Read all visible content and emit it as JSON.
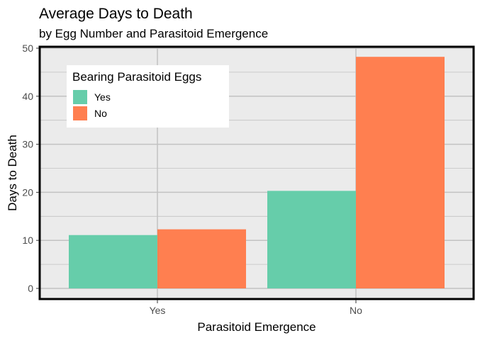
{
  "chart_data": {
    "type": "bar",
    "title": "Average Days to Death",
    "subtitle": "by Egg Number and Parasitoid Emergence",
    "xlabel": "Parasitoid Emergence",
    "ylabel": "Days to Death",
    "categories": [
      "Yes",
      "No"
    ],
    "series": [
      {
        "name": "Yes",
        "color": "#66CDAA",
        "values": [
          11.1,
          20.3
        ]
      },
      {
        "name": "No",
        "color": "#FF7F50",
        "values": [
          12.3,
          48.2
        ]
      }
    ],
    "ylim": [
      0,
      50
    ],
    "yticks": [
      0,
      10,
      20,
      30,
      40,
      50
    ],
    "grid": true,
    "background": "#EBEBEB",
    "gridline_color": "#C2C2C2",
    "legend": {
      "title": "Bearing Parasitoid Eggs",
      "placement": "top-left"
    }
  }
}
